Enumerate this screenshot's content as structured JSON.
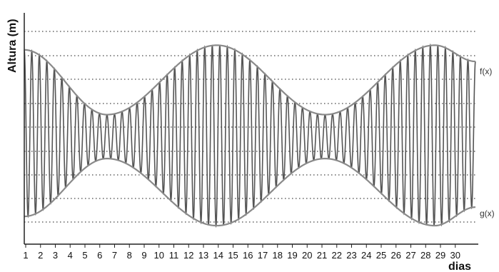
{
  "chart_data": {
    "type": "line",
    "title": "",
    "ylabel": "Altura (m)",
    "xlabel": "dias",
    "x_ticks": [
      "1",
      "2",
      "3",
      "4",
      "5",
      "6",
      "7",
      "8",
      "9",
      "10",
      "11",
      "12",
      "13",
      "14",
      "15",
      "16",
      "17",
      "18",
      "19",
      "20",
      "21",
      "22",
      "23",
      "24",
      "25",
      "26",
      "27",
      "28",
      "29",
      "30"
    ],
    "xlim": [
      1,
      31
    ],
    "y_ticks_printed": false,
    "grid": {
      "horizontal": "dotted",
      "vertical": false
    },
    "oscillations_per_day": 2,
    "series": [
      {
        "name": "f(x)",
        "role": "upper-envelope",
        "x": [
          1,
          6.5,
          13.8,
          21,
          28.3,
          31
        ],
        "y": [
          0.84,
          0.56,
          0.86,
          0.56,
          0.86,
          0.79
        ]
      },
      {
        "name": "g(x)",
        "role": "lower-envelope",
        "x": [
          1,
          6.5,
          13.8,
          21,
          28.3,
          31
        ],
        "y": [
          0.12,
          0.37,
          0.08,
          0.37,
          0.08,
          0.16
        ]
      }
    ],
    "colors": {
      "curves": "#8a8a8a",
      "oscillation": "#555555",
      "grid": "#444444",
      "axes": "#222222"
    }
  }
}
